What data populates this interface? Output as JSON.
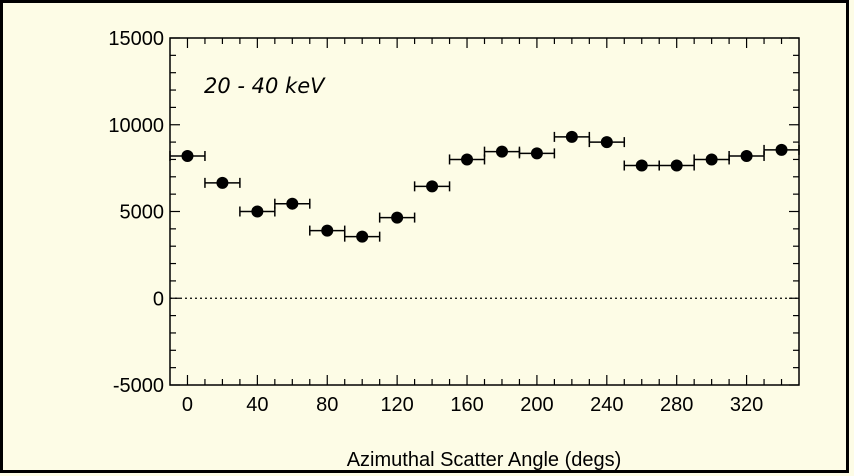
{
  "chart_data": {
    "type": "scatter",
    "title": "",
    "annotation": "20 - 40 keV",
    "xlabel": "Azimuthal Scatter Angle (degs)",
    "ylabel": "",
    "xlim": [
      -10,
      350
    ],
    "ylim": [
      -5000,
      15000
    ],
    "x_ticks": [
      0,
      40,
      80,
      120,
      160,
      200,
      240,
      280,
      320
    ],
    "y_ticks": [
      -5000,
      0,
      5000,
      10000,
      15000
    ],
    "x_tick_labels": [
      "0",
      "40",
      "80",
      "120",
      "160",
      "200",
      "240",
      "280",
      "320"
    ],
    "y_tick_labels": [
      "-5000",
      "0",
      "5000",
      "10000",
      "15000"
    ],
    "x_error": 10,
    "zero_line": "dotted",
    "grid": false,
    "points": [
      {
        "x": 0,
        "y": 8200
      },
      {
        "x": 20,
        "y": 6650
      },
      {
        "x": 40,
        "y": 5000
      },
      {
        "x": 60,
        "y": 5450
      },
      {
        "x": 80,
        "y": 3900
      },
      {
        "x": 100,
        "y": 3550
      },
      {
        "x": 120,
        "y": 4650
      },
      {
        "x": 140,
        "y": 6450
      },
      {
        "x": 160,
        "y": 8000
      },
      {
        "x": 180,
        "y": 8450
      },
      {
        "x": 200,
        "y": 8350
      },
      {
        "x": 220,
        "y": 9300
      },
      {
        "x": 240,
        "y": 9000
      },
      {
        "x": 260,
        "y": 7650
      },
      {
        "x": 280,
        "y": 7650
      },
      {
        "x": 300,
        "y": 8000
      },
      {
        "x": 320,
        "y": 8200
      },
      {
        "x": 340,
        "y": 8550
      }
    ]
  },
  "colors": {
    "background": "#fdfce6",
    "ink": "#000000"
  }
}
